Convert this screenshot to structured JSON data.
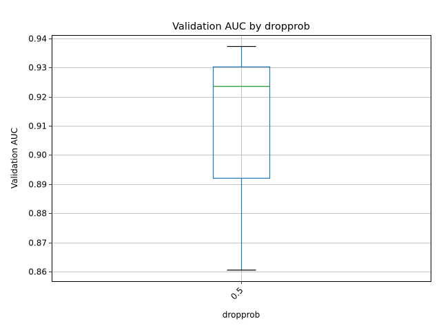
{
  "chart_data": {
    "type": "box",
    "title": "Validation AUC by dropprob",
    "xlabel": "dropprob",
    "ylabel": "Validation AUC",
    "categories": [
      "0.5"
    ],
    "boxes": [
      {
        "category": "0.5",
        "whisker_low": 0.8605,
        "q1": 0.892,
        "median": 0.9235,
        "q3": 0.9302,
        "whisker_high": 0.9372
      }
    ],
    "yticks": [
      "0.86",
      "0.87",
      "0.88",
      "0.89",
      "0.90",
      "0.91",
      "0.92",
      "0.93",
      "0.94"
    ],
    "ylim": [
      0.8567,
      0.9411
    ],
    "grid": true,
    "colors": {
      "box": "#1f77b4",
      "median": "#2ca02c",
      "cap": "#000000",
      "grid": "#b0b0b0"
    }
  }
}
